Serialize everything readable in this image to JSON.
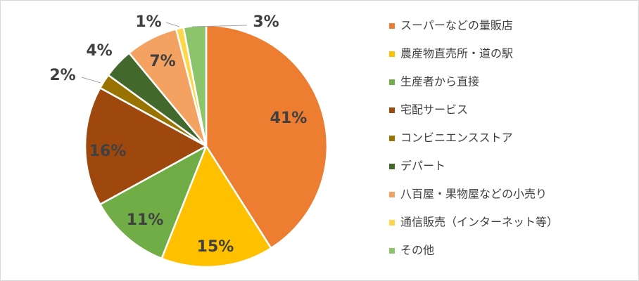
{
  "chart_data": {
    "type": "pie",
    "title": "",
    "legend_position": "right",
    "slices": [
      {
        "label": "スーパーなどの量販店",
        "value": 41,
        "display": "41%",
        "color": "#ED7D31"
      },
      {
        "label": "農産物直売所・道の駅",
        "value": 15,
        "display": "15%",
        "color": "#FFC000"
      },
      {
        "label": "生産者から直接",
        "value": 11,
        "display": "11%",
        "color": "#70AD47"
      },
      {
        "label": "宅配サービス",
        "value": 16,
        "display": "16%",
        "color": "#9E480E"
      },
      {
        "label": "コンビニエンスストア",
        "value": 2,
        "display": "2%",
        "color": "#997300"
      },
      {
        "label": "デパート",
        "value": 4,
        "display": "4%",
        "color": "#43682B"
      },
      {
        "label": "八百屋・果物屋などの小売り",
        "value": 7,
        "display": "7%",
        "color": "#F4A261"
      },
      {
        "label": "通信販売（インターネット等）",
        "value": 1,
        "display": "1%",
        "color": "#FFD54A"
      },
      {
        "label": "その他",
        "value": 3,
        "display": "3%",
        "color": "#8BC46A"
      }
    ]
  }
}
